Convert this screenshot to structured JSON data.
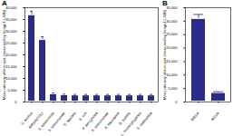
{
  "chart_data": [
    {
      "type": "bar",
      "title": "A",
      "y_label": "Mean intensity of test spot (measured by ImageJ 1.42N)",
      "categories": [
        "S. aureus",
        "MRSA(COL)",
        "S. epidermidis",
        "S. pneumoniae",
        "E. faecalis",
        "E. coli",
        "P. aeruginosa",
        "K. pneumoniae",
        "A. baumannii",
        "B. subtilis",
        "L. monocytogenes",
        "S. maltophilia"
      ],
      "values": [
        37000,
        26500,
        3500,
        3100,
        3000,
        3000,
        3000,
        3000,
        3000,
        3000,
        3000,
        3000
      ],
      "errors": [
        1500,
        1200,
        300,
        200,
        200,
        200,
        200,
        200,
        200,
        200,
        200,
        200
      ],
      "color": "#2b2b8f",
      "ylim": [
        0,
        40000
      ],
      "yticks": [
        0,
        {
          "value": 5000,
          "label": "5,000"
        },
        {
          "value": 10000,
          "label": "10,000"
        },
        {
          "value": 15000,
          "label": "15,000"
        },
        {
          "value": 20000,
          "label": "20,000"
        },
        {
          "value": 25000,
          "label": "25,000"
        },
        {
          "value": 30000,
          "label": "30,000"
        },
        {
          "value": 35000,
          "label": "35,000"
        },
        {
          "value": 40000,
          "label": "40,000"
        }
      ],
      "grid": false
    },
    {
      "type": "bar",
      "title": "B",
      "y_label": "Mean intensity of test spot (measured by ImageJ 1.42N)",
      "categories": [
        "MRSA",
        "MSSA"
      ],
      "values": [
        31000,
        3500
      ],
      "errors": [
        1500,
        300
      ],
      "color": "#2b2b8f",
      "ylim": [
        0,
        35000
      ],
      "yticks": [
        0,
        {
          "value": 5000,
          "label": "5,000"
        },
        {
          "value": 10000,
          "label": "10,000"
        },
        {
          "value": 15000,
          "label": "15,000"
        },
        {
          "value": 20000,
          "label": "20,000"
        },
        {
          "value": 25000,
          "label": "25,000"
        },
        {
          "value": 30000,
          "label": "30,000"
        },
        {
          "value": 35000,
          "label": "35,000"
        }
      ],
      "grid": false
    }
  ]
}
